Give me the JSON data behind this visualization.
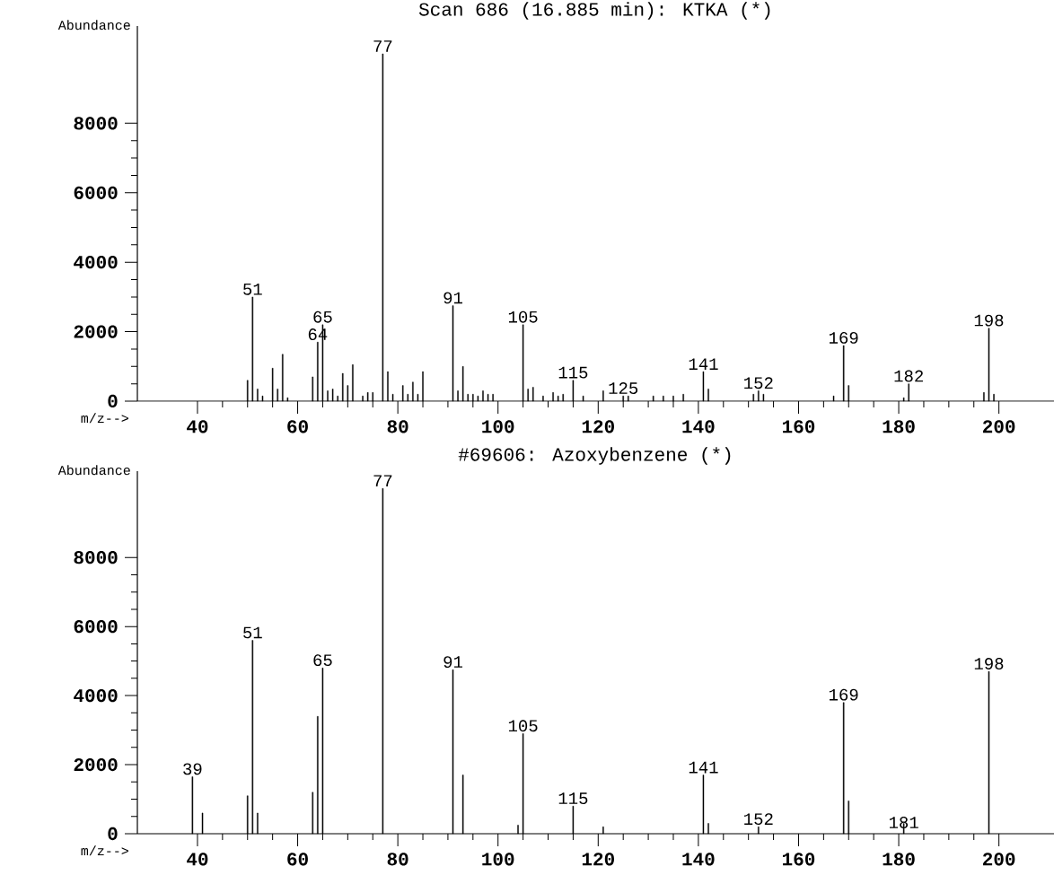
{
  "chart_data": [
    {
      "type": "bar",
      "title": "Scan 686 (16.885 min): KTKA      (*)",
      "xlabel": "m/z-->",
      "ylabel": "Abundance",
      "x": [
        50,
        51,
        52,
        53,
        55,
        56,
        57,
        58,
        63,
        64,
        65,
        66,
        67,
        68,
        69,
        70,
        71,
        73,
        74,
        75,
        77,
        78,
        79,
        81,
        82,
        83,
        84,
        85,
        91,
        92,
        93,
        94,
        95,
        96,
        97,
        98,
        99,
        105,
        106,
        107,
        109,
        111,
        112,
        113,
        115,
        117,
        121,
        125,
        126,
        131,
        133,
        135,
        137,
        141,
        142,
        151,
        152,
        153,
        167,
        169,
        170,
        181,
        182,
        197,
        198,
        199
      ],
      "values": [
        600,
        3000,
        350,
        150,
        950,
        350,
        1350,
        100,
        700,
        1700,
        2200,
        300,
        350,
        150,
        800,
        450,
        1050,
        150,
        250,
        250,
        10000,
        850,
        200,
        450,
        200,
        550,
        200,
        850,
        2750,
        300,
        1000,
        200,
        200,
        150,
        300,
        200,
        200,
        2200,
        350,
        400,
        150,
        250,
        150,
        200,
        600,
        150,
        300,
        150,
        150,
        150,
        150,
        150,
        200,
        850,
        350,
        200,
        300,
        200,
        150,
        1600,
        450,
        100,
        500,
        250,
        2100,
        200
      ],
      "color": "#000000",
      "xlim": [
        28,
        211
      ],
      "ylim": [
        0,
        10800
      ],
      "xticks": [
        40,
        60,
        80,
        100,
        120,
        140,
        160,
        180,
        200
      ],
      "yticks": [
        0,
        2000,
        4000,
        6000,
        8000
      ],
      "annotations": [
        {
          "text": "77",
          "x": 77,
          "y": 10000
        },
        {
          "text": "51",
          "x": 51,
          "y": 3000
        },
        {
          "text": "65",
          "x": 65,
          "y": 2200
        },
        {
          "text": "64",
          "x": 64,
          "y": 1700
        },
        {
          "text": "91",
          "x": 91,
          "y": 2750
        },
        {
          "text": "105",
          "x": 105,
          "y": 2200
        },
        {
          "text": "115",
          "x": 115,
          "y": 600
        },
        {
          "text": "125",
          "x": 125,
          "y": 150
        },
        {
          "text": "141",
          "x": 141,
          "y": 850
        },
        {
          "text": "152",
          "x": 152,
          "y": 300
        },
        {
          "text": "169",
          "x": 169,
          "y": 1600
        },
        {
          "text": "182",
          "x": 182,
          "y": 500
        },
        {
          "text": "198",
          "x": 198,
          "y": 2100
        }
      ]
    },
    {
      "type": "bar",
      "title": "#69606: Azoxybenzene (*)",
      "xlabel": "m/z-->",
      "ylabel": "Abundance",
      "x": [
        39,
        41,
        50,
        51,
        52,
        63,
        64,
        65,
        77,
        91,
        93,
        104,
        105,
        115,
        121,
        141,
        142,
        152,
        169,
        170,
        181,
        198
      ],
      "values": [
        1650,
        600,
        1100,
        5600,
        600,
        1200,
        3400,
        4800,
        10000,
        4750,
        1700,
        250,
        2900,
        800,
        200,
        1700,
        300,
        200,
        3800,
        950,
        300,
        4700
      ],
      "color": "#000000",
      "xlim": [
        28,
        211
      ],
      "ylim": [
        0,
        10500
      ],
      "xticks": [
        40,
        60,
        80,
        100,
        120,
        140,
        160,
        180,
        200
      ],
      "yticks": [
        0,
        2000,
        4000,
        6000,
        8000
      ],
      "annotations": [
        {
          "text": "77",
          "x": 77,
          "y": 10000
        },
        {
          "text": "39",
          "x": 39,
          "y": 1650
        },
        {
          "text": "51",
          "x": 51,
          "y": 5600
        },
        {
          "text": "65",
          "x": 65,
          "y": 4800
        },
        {
          "text": "91",
          "x": 91,
          "y": 4750
        },
        {
          "text": "105",
          "x": 105,
          "y": 2900
        },
        {
          "text": "115",
          "x": 115,
          "y": 800
        },
        {
          "text": "141",
          "x": 141,
          "y": 1700
        },
        {
          "text": "152",
          "x": 152,
          "y": 200
        },
        {
          "text": "169",
          "x": 169,
          "y": 3800
        },
        {
          "text": "181",
          "x": 181,
          "y": 100
        },
        {
          "text": "198",
          "x": 198,
          "y": 4700
        }
      ]
    }
  ]
}
